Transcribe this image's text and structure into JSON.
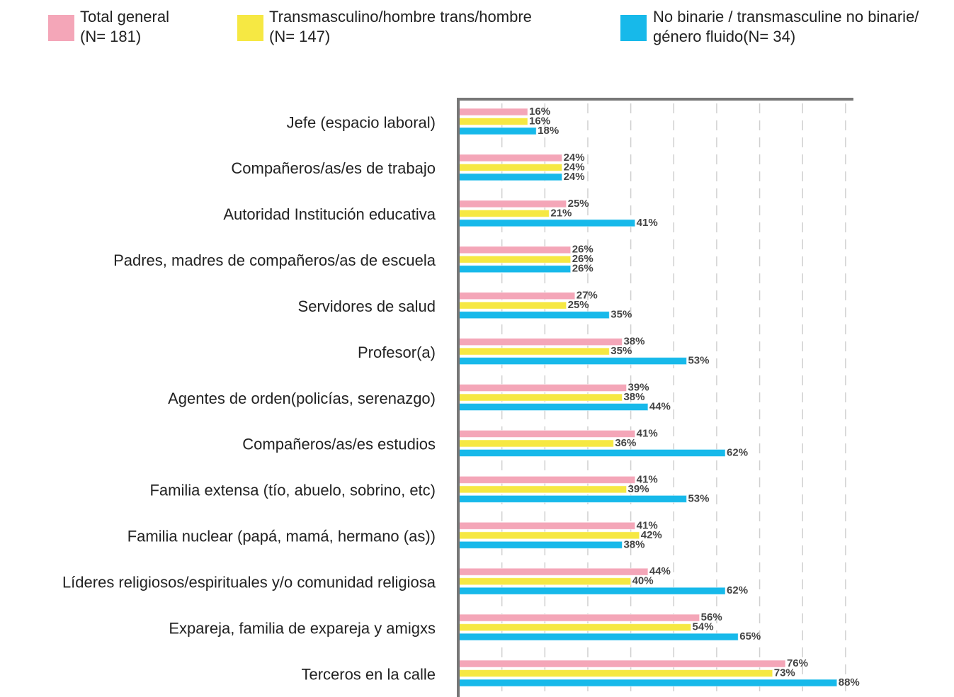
{
  "chart_data": {
    "type": "bar",
    "orientation": "horizontal",
    "categories": [
      "Jefe (espacio laboral)",
      "Compañeros/as/es de trabajo",
      "Autoridad Institución educativa",
      "Padres, madres de compañeros/as de escuela",
      "Servidores de salud",
      "Profesor(a)",
      "Agentes de orden(policías, serenazgo)",
      "Compañeros/as/es estudios",
      "Familia extensa (tío, abuelo, sobrino, etc)",
      "Familia nuclear (papá, mamá, hermano (as))",
      "Líderes religiosos/espirituales y/o comunidad religiosa",
      "Expareja, familia de expareja y amigxs",
      "Terceros en la calle"
    ],
    "series": [
      {
        "name": "Total general\n(N= 181)",
        "color": "#f4a6b8",
        "values": [
          16,
          24,
          25,
          26,
          27,
          38,
          39,
          41,
          41,
          41,
          44,
          56,
          76
        ],
        "value_labels": [
          "16%",
          "24%",
          "25%",
          "26%",
          "27%",
          "38%",
          "39%",
          "41%",
          "41%",
          "41%",
          "44%",
          "56%",
          "76%"
        ]
      },
      {
        "name": "Transmasculino/hombre trans/hombre\n(N= 147)",
        "color": "#f6e843",
        "values": [
          16,
          24,
          21,
          26,
          25,
          35,
          38,
          36,
          39,
          42,
          40,
          54,
          73
        ],
        "value_labels": [
          "16%",
          "24%",
          "21%",
          "26%",
          "25%",
          "35%",
          "38%",
          "36%",
          "39%",
          "42%",
          "40%",
          "54%",
          "73%"
        ]
      },
      {
        "name": "No binarie / transmasculine no binarie/\ngénero fluido(N= 34)",
        "color": "#17b9ea",
        "values": [
          18,
          24,
          41,
          26,
          35,
          53,
          44,
          62,
          53,
          38,
          62,
          65,
          88
        ],
        "value_labels": [
          "18%",
          "24%",
          "41%",
          "26%",
          "35%",
          "53%",
          "44%",
          "62%",
          "53%",
          "38%",
          "62%",
          "65%",
          "88%"
        ]
      }
    ],
    "xlim": [
      0,
      92
    ],
    "xticks": [
      0,
      10,
      20,
      30,
      40,
      50,
      60,
      70,
      80,
      90
    ],
    "grid": true,
    "legend": "top"
  }
}
